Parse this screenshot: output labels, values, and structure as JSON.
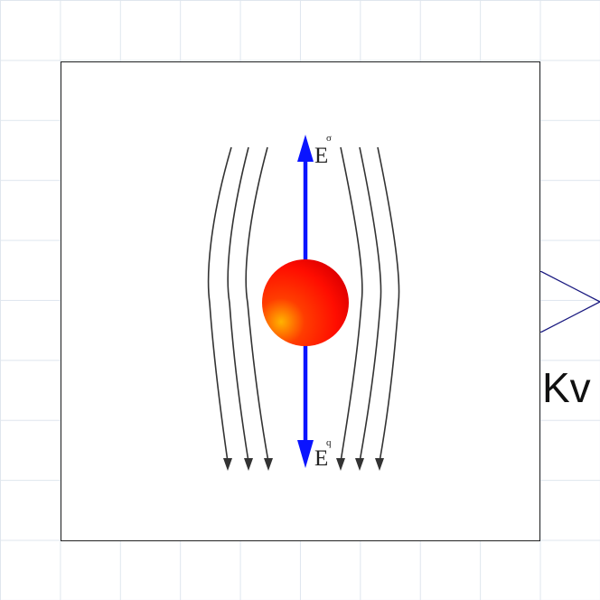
{
  "diagram": {
    "top_vector_label": "E",
    "top_vector_subscript": "σ",
    "bottom_vector_label": "E",
    "bottom_vector_subscript": "q",
    "port_label": "Kv"
  },
  "colors": {
    "vector": "#0a14ff",
    "sphere": "#ff1a00",
    "sphere_highlight": "#ffb300",
    "field_line": "#333333",
    "port_stroke": "#1a1a80",
    "grid": "#dfe6ee"
  },
  "icons": {
    "charged_sphere": "red-sphere-icon",
    "input_port": "triangle-port-icon"
  }
}
